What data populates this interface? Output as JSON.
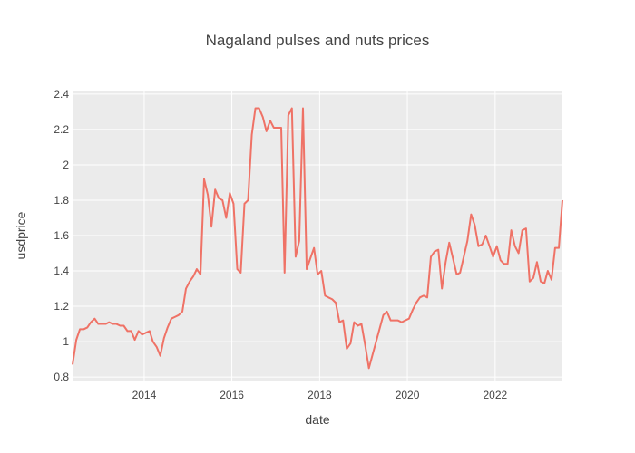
{
  "chart_data": {
    "type": "line",
    "title": "Nagaland pulses and nuts prices",
    "xlabel": "date",
    "ylabel": "usdprice",
    "xlim": [
      "2012-05-15",
      "2023-07-15"
    ],
    "ylim": [
      0.78,
      2.42
    ],
    "x_ticks": [
      "2014",
      "2016",
      "2018",
      "2020",
      "2022"
    ],
    "y_ticks": [
      0.8,
      1,
      1.2,
      1.4,
      1.6,
      1.8,
      2,
      2.2,
      2.4
    ],
    "y_tick_labels": [
      "0.8",
      "1",
      "1.2",
      "1.4",
      "1.6",
      "1.8",
      "2",
      "2.2",
      "2.4"
    ],
    "grid": true,
    "legend": "none",
    "colors": {
      "line": "#ef7266",
      "plot_background": "#ebebeb",
      "grid": "#ffffff"
    },
    "series": [
      {
        "x": [
          "2012-05-15",
          "2012-06-15",
          "2012-07-15",
          "2012-08-15",
          "2012-09-15",
          "2012-10-15",
          "2012-11-15",
          "2012-12-15",
          "2013-01-15",
          "2013-02-15",
          "2013-03-15",
          "2013-04-15",
          "2013-05-15",
          "2013-06-15",
          "2013-07-15",
          "2013-08-15",
          "2013-09-15",
          "2013-10-15",
          "2013-11-15",
          "2013-12-15",
          "2014-01-15",
          "2014-02-15",
          "2014-03-15",
          "2014-04-15",
          "2014-05-15",
          "2014-06-15",
          "2014-07-15",
          "2014-08-15",
          "2014-09-15",
          "2014-10-15",
          "2014-11-15",
          "2014-12-15",
          "2015-01-15",
          "2015-02-15",
          "2015-03-15",
          "2015-04-15",
          "2015-05-15",
          "2015-06-15",
          "2015-07-15",
          "2015-08-15",
          "2015-09-15",
          "2015-10-15",
          "2015-11-15",
          "2015-12-15",
          "2016-01-15",
          "2016-02-15",
          "2016-03-15",
          "2016-04-15",
          "2016-05-15",
          "2016-06-15",
          "2016-07-15",
          "2016-08-15",
          "2016-09-15",
          "2016-10-15",
          "2016-11-15",
          "2016-12-15",
          "2017-01-15",
          "2017-02-15",
          "2017-03-15",
          "2017-04-15",
          "2017-05-15",
          "2017-06-15",
          "2017-07-15",
          "2017-08-15",
          "2017-09-15",
          "2017-10-15",
          "2017-11-15",
          "2017-12-15",
          "2018-01-15",
          "2018-02-15",
          "2018-03-15",
          "2018-04-15",
          "2018-05-15",
          "2018-06-15",
          "2018-07-15",
          "2018-08-15",
          "2018-09-15",
          "2018-10-15",
          "2018-11-15",
          "2018-12-15",
          "2019-01-15",
          "2019-02-15",
          "2019-06-15",
          "2019-07-15",
          "2019-08-15",
          "2019-09-15",
          "2019-10-15",
          "2019-11-15",
          "2019-12-15",
          "2020-01-15",
          "2020-02-15",
          "2020-03-15",
          "2020-04-15",
          "2020-05-15",
          "2020-06-15",
          "2020-07-15",
          "2020-08-15",
          "2020-09-15",
          "2020-10-15",
          "2020-11-15",
          "2020-12-15",
          "2021-01-15",
          "2021-02-15",
          "2021-03-15",
          "2021-04-15",
          "2021-05-15",
          "2021-06-15",
          "2021-07-15",
          "2021-08-15",
          "2021-09-15",
          "2021-10-15",
          "2021-11-15",
          "2021-12-15",
          "2022-01-15",
          "2022-02-15",
          "2022-03-15",
          "2022-04-15",
          "2022-05-15",
          "2022-06-15",
          "2022-07-15",
          "2022-08-15",
          "2022-09-15",
          "2022-10-15",
          "2022-11-15",
          "2022-12-15",
          "2023-01-15",
          "2023-02-15",
          "2023-03-15",
          "2023-04-15",
          "2023-05-15",
          "2023-06-15",
          "2023-07-15"
        ],
        "y": [
          0.87,
          1.01,
          1.07,
          1.07,
          1.08,
          1.11,
          1.13,
          1.1,
          1.1,
          1.1,
          1.11,
          1.1,
          1.1,
          1.09,
          1.09,
          1.06,
          1.06,
          1.01,
          1.06,
          1.04,
          1.05,
          1.06,
          1.0,
          0.97,
          0.92,
          1.02,
          1.08,
          1.13,
          1.14,
          1.15,
          1.17,
          1.3,
          1.34,
          1.37,
          1.41,
          1.38,
          1.92,
          1.83,
          1.65,
          1.86,
          1.81,
          1.8,
          1.7,
          1.84,
          1.78,
          1.41,
          1.39,
          1.78,
          1.8,
          2.17,
          2.32,
          2.32,
          2.27,
          2.19,
          2.25,
          2.21,
          2.21,
          2.21,
          1.39,
          2.28,
          2.32,
          1.48,
          1.57,
          2.32,
          1.41,
          1.47,
          1.53,
          1.38,
          1.4,
          1.26,
          1.25,
          1.24,
          1.22,
          1.11,
          1.12,
          0.96,
          0.99,
          1.11,
          1.09,
          1.1,
          0.98,
          0.85,
          1.15,
          1.17,
          1.12,
          1.12,
          1.12,
          1.11,
          1.12,
          1.13,
          1.18,
          1.22,
          1.25,
          1.26,
          1.25,
          1.48,
          1.51,
          1.52,
          1.3,
          1.45,
          1.56,
          1.47,
          1.38,
          1.39,
          1.48,
          1.57,
          1.72,
          1.66,
          1.54,
          1.55,
          1.6,
          1.54,
          1.48,
          1.54,
          1.46,
          1.44,
          1.44,
          1.63,
          1.54,
          1.5,
          1.63,
          1.64,
          1.34,
          1.36,
          1.45,
          1.34,
          1.33,
          1.4,
          1.35,
          1.53,
          1.53,
          1.8
        ]
      }
    ]
  }
}
